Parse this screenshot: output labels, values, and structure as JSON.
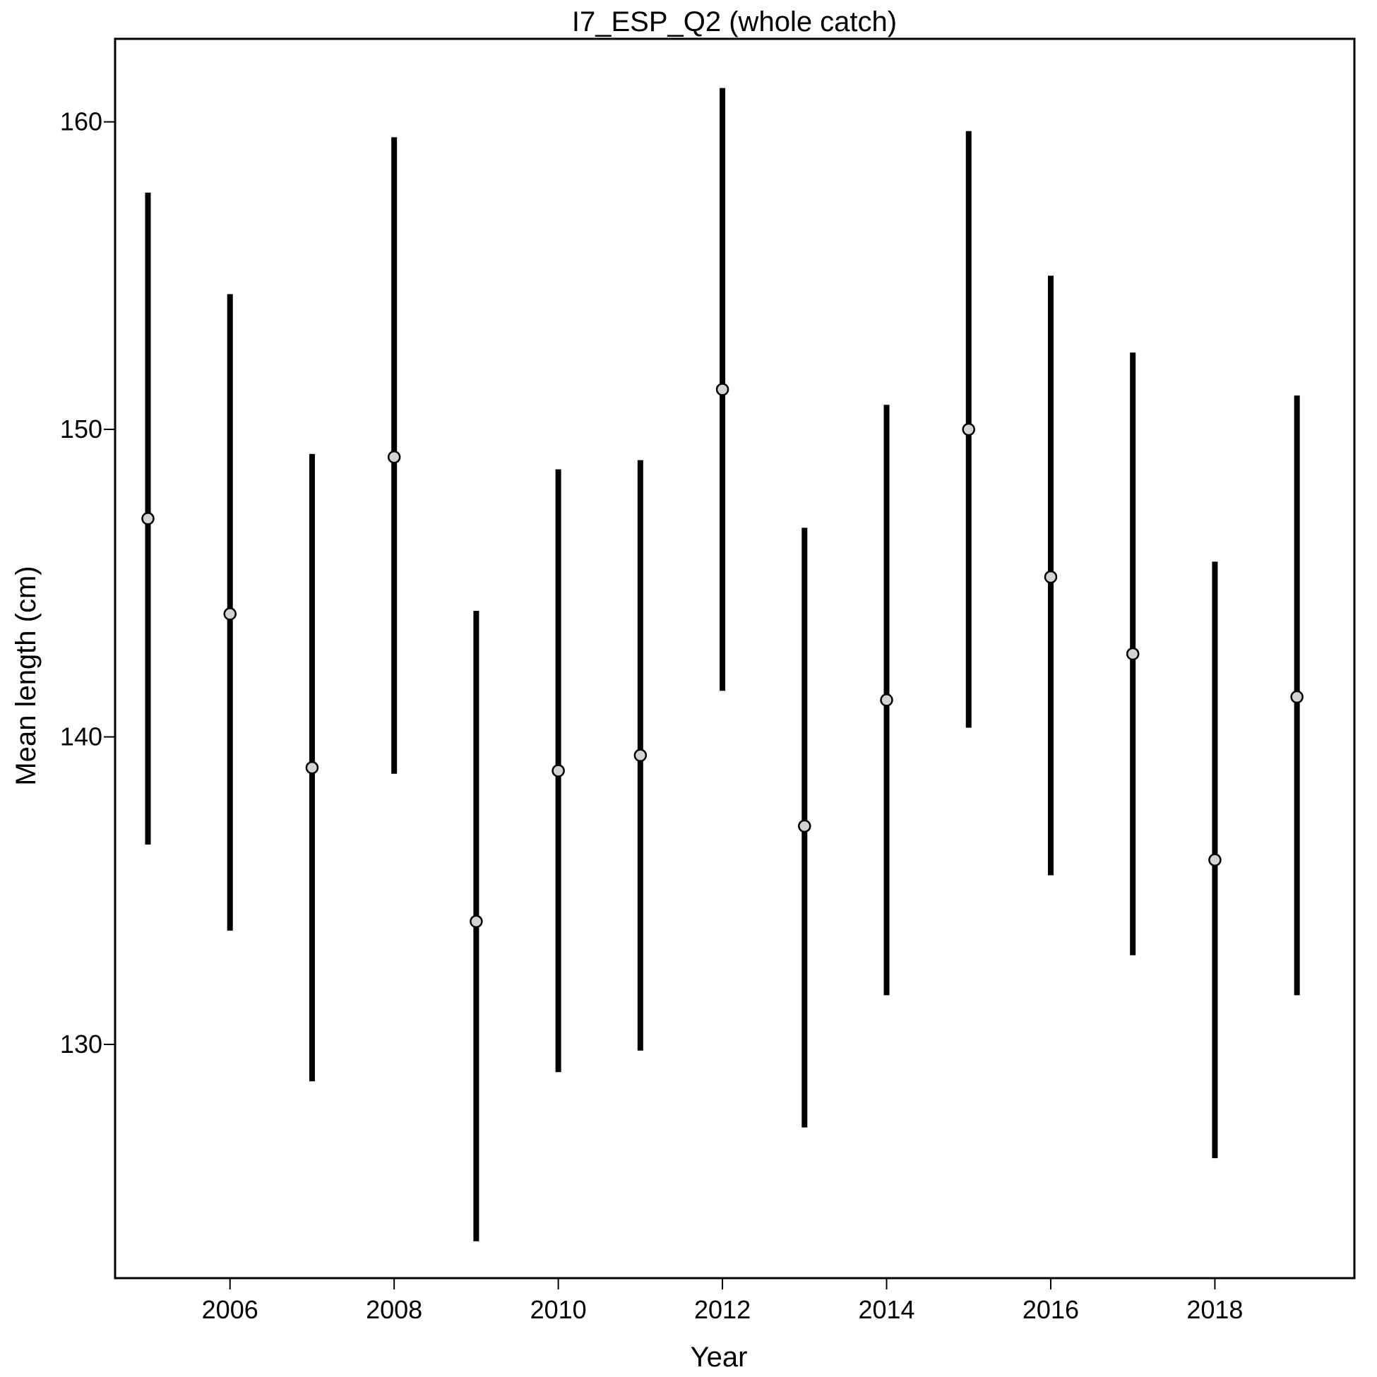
{
  "chart_data": {
    "type": "scatter",
    "title": "I7_ESP_Q2 (whole catch)",
    "xlabel": "Year",
    "ylabel": "Mean length (cm)",
    "xlim": [
      2004.6,
      2019.7
    ],
    "ylim": [
      122.4,
      162.7
    ],
    "xticks": [
      2006,
      2008,
      2010,
      2012,
      2014,
      2016,
      2018
    ],
    "yticks": [
      130,
      140,
      150,
      160
    ],
    "grid": false,
    "legend": "none",
    "colors": {
      "bar": "#000000",
      "point_fill": "#d3d3d3",
      "point_stroke": "#000000"
    },
    "series": [
      {
        "x": [
          2005,
          2006,
          2007,
          2008,
          2009,
          2010,
          2011,
          2012,
          2013,
          2014,
          2015,
          2016,
          2017,
          2018,
          2019
        ],
        "y": [
          147.1,
          144.0,
          139.0,
          149.1,
          134.0,
          138.9,
          139.4,
          151.3,
          137.1,
          141.2,
          150.0,
          145.2,
          142.7,
          136.0,
          141.3
        ],
        "lower": [
          136.5,
          133.7,
          128.8,
          138.8,
          123.6,
          129.1,
          129.8,
          141.5,
          127.3,
          131.6,
          140.3,
          135.5,
          132.9,
          126.3,
          131.6
        ],
        "upper": [
          157.7,
          154.4,
          149.2,
          159.5,
          144.1,
          148.7,
          149.0,
          161.1,
          146.8,
          150.8,
          159.7,
          155.0,
          152.5,
          145.7,
          151.1
        ]
      }
    ]
  }
}
